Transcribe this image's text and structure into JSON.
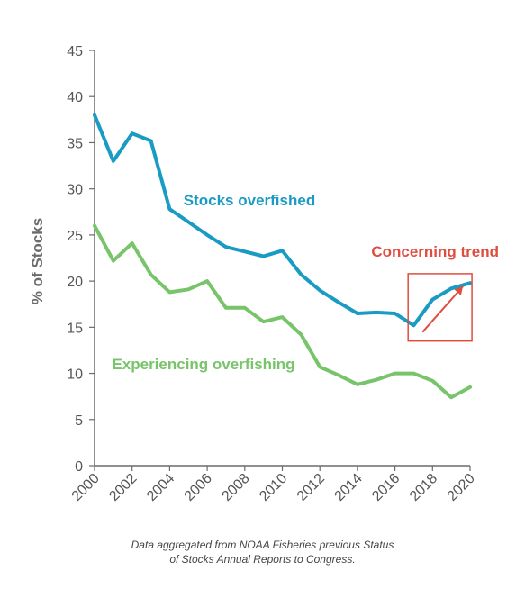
{
  "chart_data": {
    "type": "line",
    "ylabel": "% of Stocks",
    "ylim": [
      0,
      45
    ],
    "yticks": [
      0,
      5,
      10,
      15,
      20,
      25,
      30,
      35,
      40,
      45
    ],
    "xlim": [
      2000,
      2020
    ],
    "xticks": [
      2000,
      2002,
      2004,
      2006,
      2008,
      2010,
      2012,
      2014,
      2016,
      2018,
      2020
    ],
    "grid": false,
    "x": [
      2000,
      2001,
      2002,
      2003,
      2004,
      2005,
      2006,
      2007,
      2008,
      2009,
      2010,
      2011,
      2012,
      2013,
      2014,
      2015,
      2016,
      2017,
      2018,
      2019,
      2020
    ],
    "series": [
      {
        "name": "Stocks overfished",
        "color": "#1a9bc4",
        "values": [
          38,
          33,
          36,
          35.2,
          27.8,
          26.4,
          25,
          23.7,
          23.2,
          22.7,
          23.3,
          20.7,
          19,
          17.7,
          16.5,
          16.6,
          16.5,
          15.2,
          18,
          19.2,
          19.8
        ]
      },
      {
        "name": "Experiencing overfishing",
        "color": "#78c46a",
        "values": [
          26,
          22.2,
          24.1,
          20.7,
          18.8,
          19.1,
          20,
          17.1,
          17.1,
          15.6,
          16.1,
          14.2,
          10.7,
          9.8,
          8.8,
          9.3,
          10,
          10,
          9.2,
          7.4,
          8.5
        ]
      }
    ],
    "annotation": {
      "text": "Concerning trend",
      "color": "#e04c3f",
      "x_range": [
        2016.7,
        2020.1
      ],
      "y_range": [
        13.5,
        20.8
      ]
    }
  },
  "caption": {
    "line1": "Data aggregated from NOAA Fisheries previous Status",
    "line2": "of Stocks Annual Reports to Congress."
  }
}
